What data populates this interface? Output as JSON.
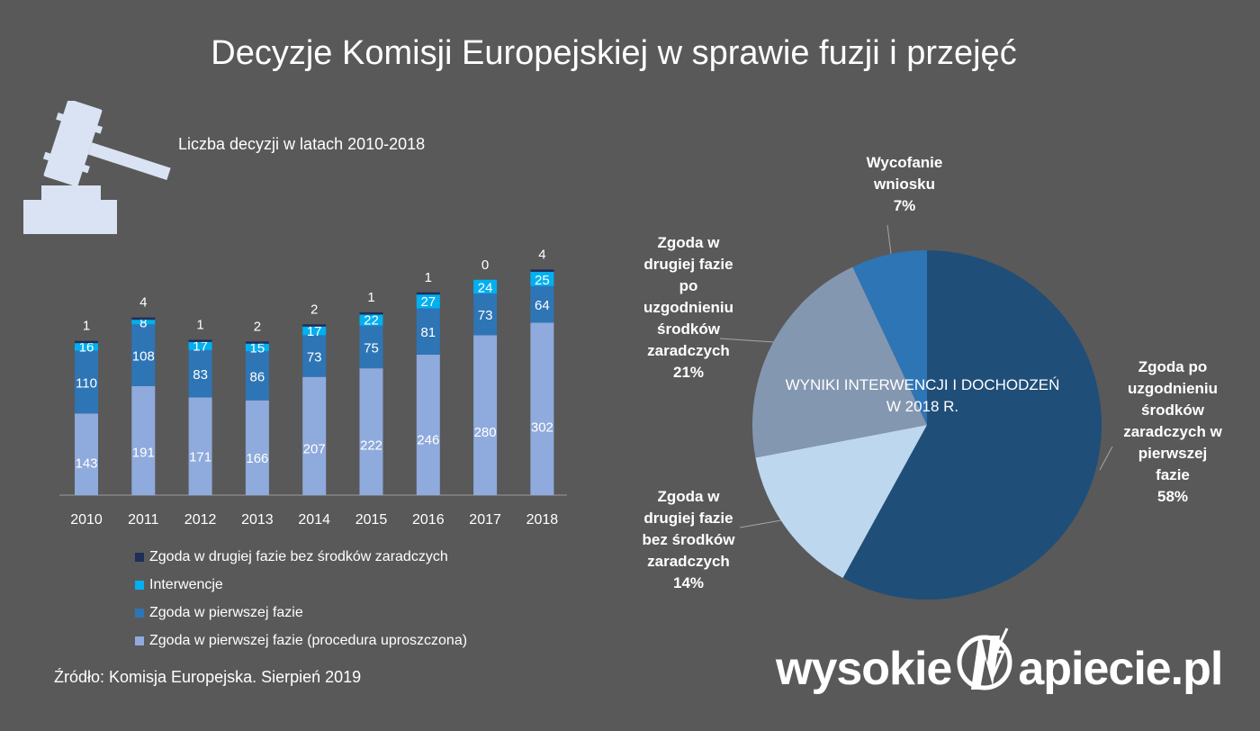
{
  "header": {
    "title": "Decyzje Komisji Europejskiej w sprawie fuzji i przejęć"
  },
  "bar_section": {
    "subtitle": "Liczba decyzji w latach 2010-2018"
  },
  "source": "Źródło: Komisja Europejska. Sierpień 2019",
  "brand": {
    "left": "wysokie",
    "right": "apiecie.pl",
    "logo_icon": "lightning-n-logo-icon"
  },
  "icons": {
    "gavel": "gavel-icon"
  },
  "chart_data": [
    {
      "type": "bar",
      "stacked": true,
      "title": "Liczba decyzji w latach 2010-2018",
      "categories": [
        "2010",
        "2011",
        "2012",
        "2013",
        "2014",
        "2015",
        "2016",
        "2017",
        "2018"
      ],
      "series": [
        {
          "name": "Zgoda w pierwszej fazie (procedura uproszczona)",
          "color": "#8faadc",
          "values": [
            143,
            191,
            171,
            166,
            207,
            222,
            246,
            280,
            302
          ]
        },
        {
          "name": "Zgoda w pierwszej fazie",
          "color": "#2e75b6",
          "values": [
            110,
            108,
            83,
            86,
            73,
            75,
            81,
            73,
            64
          ]
        },
        {
          "name": "Interwencje",
          "color": "#00b0f0",
          "values": [
            16,
            8,
            17,
            15,
            17,
            22,
            27,
            24,
            25
          ]
        },
        {
          "name": "Zgoda w drugiej fazie bez środków zaradczych",
          "color": "#1f2d5a",
          "values": [
            1,
            4,
            1,
            2,
            2,
            1,
            1,
            0,
            4
          ]
        }
      ],
      "legend_order": [
        3,
        2,
        1,
        0
      ],
      "legend_position": "bottom",
      "grid": false
    },
    {
      "type": "pie",
      "title": "WYNIKI INTERWENCJI I DOCHODZEŃ W 2018 R.",
      "slices": [
        {
          "label": "Zgoda po uzgodnieniu środków zaradczych w pierwszej fazie",
          "value": 58,
          "display": "58%",
          "color": "#1f4e79"
        },
        {
          "label": "Zgoda w drugiej fazie bez środków zaradczych",
          "value": 14,
          "display": "14%",
          "color": "#bdd7ee"
        },
        {
          "label": "Zgoda w drugiej fazie po uzgodnieniu środków zaradczych",
          "value": 21,
          "display": "21%",
          "color": "#8497b0"
        },
        {
          "label": "Wycofanie wniosku",
          "value": 7,
          "display": "7%",
          "color": "#2e75b6"
        }
      ]
    }
  ],
  "pie_labels": {
    "s0": "Zgoda po\nuzgodnieniu\nśrodków\nzaradczych w\npierwszej\nfazie\n58%",
    "s1": "Zgoda w\ndrugiej fazie\nbez środków\nzaradczych\n14%",
    "s2": "Zgoda w\ndrugiej fazie\npo\nuzgodnieniu\nśrodków\nzaradczych\n21%",
    "s3": "Wycofanie\nwniosku\n7%",
    "center": "WYNIKI INTERWENCJI I DOCHODZEŃ\nW 2018 R."
  }
}
